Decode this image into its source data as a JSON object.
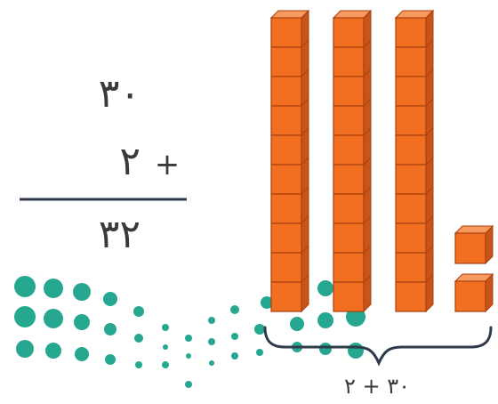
{
  "addition": {
    "top_addend": "٣٠",
    "bottom_addend": "٢",
    "plus_sign": "+",
    "sum": "٣٢"
  },
  "blocks": {
    "tens_rods": 3,
    "cubes_per_rod": 10,
    "ones_cubes": 2,
    "block_color": "#f26f21",
    "block_edge_color": "#c9541a",
    "block_top_color": "#f89a5d"
  },
  "brace_label": "٣٠ + ٢",
  "decoration": {
    "name": "teal-dot-pattern",
    "color": "#1aa38a"
  }
}
